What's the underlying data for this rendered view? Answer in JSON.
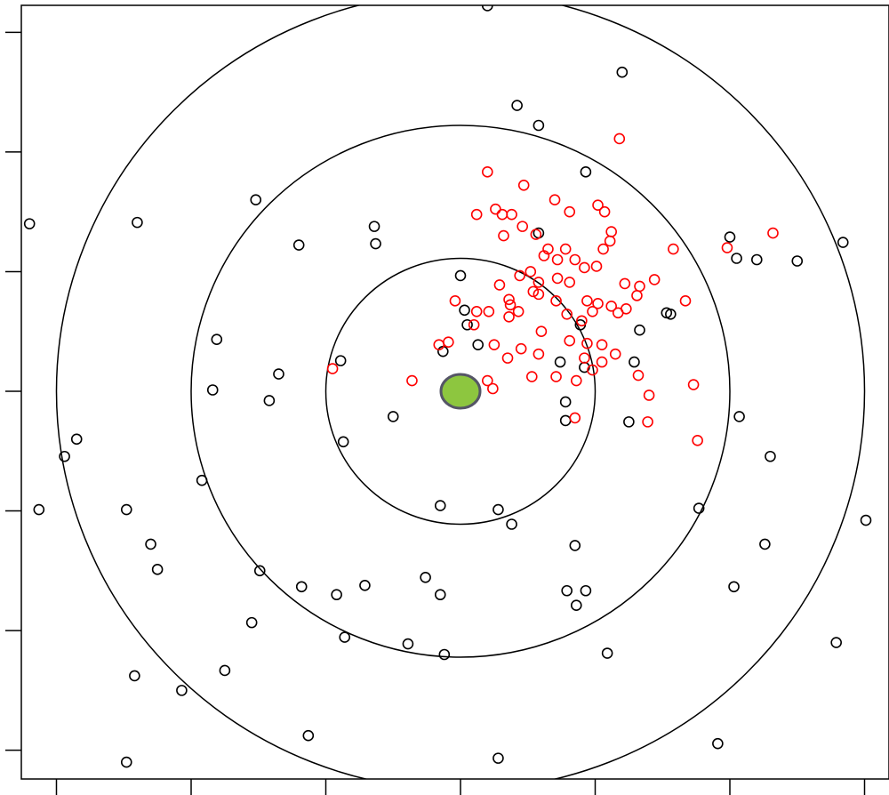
{
  "chart_data": {
    "type": "scatter",
    "title": "",
    "xlabel": "",
    "ylabel": "",
    "xlim": [
      -3.0,
      3.2
    ],
    "ylim": [
      -3.0,
      2.9
    ],
    "x_ticks": [
      -3,
      -2,
      -1,
      0,
      1,
      2,
      3
    ],
    "y_ticks": [
      -2.7,
      -1.8,
      -0.9,
      0,
      0.9,
      1.8,
      2.7
    ],
    "grid": false,
    "legend": "none",
    "target": {
      "center": [
        0,
        0
      ],
      "rings": [
        1,
        2,
        3
      ],
      "marker": {
        "x": 0,
        "y": 0,
        "fill": "#8dc63f",
        "stroke": "#555566"
      }
    },
    "series": [
      {
        "color": "#000000",
        "marker": "open-circle",
        "points": [
          [
            0.2,
            2.9
          ],
          [
            1.2,
            2.4
          ],
          [
            0.42,
            2.15
          ],
          [
            0.58,
            2.0
          ],
          [
            0.93,
            1.65
          ],
          [
            -1.52,
            1.44
          ],
          [
            -3.2,
            1.26
          ],
          [
            -2.4,
            1.27
          ],
          [
            -1.2,
            1.1
          ],
          [
            -0.64,
            1.24
          ],
          [
            -0.63,
            1.11
          ],
          [
            0.58,
            1.19
          ],
          [
            2.0,
            1.16
          ],
          [
            2.05,
            1.0
          ],
          [
            2.2,
            0.99
          ],
          [
            2.84,
            1.12
          ],
          [
            2.5,
            0.98
          ],
          [
            0,
            0.87
          ],
          [
            0.03,
            0.61
          ],
          [
            0.05,
            0.5
          ],
          [
            0.13,
            0.35
          ],
          [
            -0.13,
            0.3
          ],
          [
            0.89,
            0.5
          ],
          [
            1.33,
            0.46
          ],
          [
            1.53,
            0.59
          ],
          [
            1.56,
            0.58
          ],
          [
            -1.81,
            0.39
          ],
          [
            -0.89,
            0.23
          ],
          [
            -1.35,
            0.13
          ],
          [
            -1.84,
            0.01
          ],
          [
            -1.42,
            -0.07
          ],
          [
            0.74,
            0.22
          ],
          [
            0.92,
            0.18
          ],
          [
            1.29,
            0.22
          ],
          [
            -2.85,
            -0.36
          ],
          [
            -2.94,
            -0.49
          ],
          [
            -3.13,
            -0.89
          ],
          [
            -0.5,
            -0.19
          ],
          [
            0.78,
            -0.08
          ],
          [
            0.78,
            -0.22
          ],
          [
            1.25,
            -0.23
          ],
          [
            2.07,
            -0.19
          ],
          [
            2.3,
            -0.49
          ],
          [
            -0.87,
            -0.38
          ],
          [
            -1.92,
            -0.67
          ],
          [
            -2.48,
            -0.89
          ],
          [
            -2.3,
            -1.15
          ],
          [
            -2.25,
            -1.34
          ],
          [
            1.77,
            -0.88
          ],
          [
            -0.15,
            -0.86
          ],
          [
            0.28,
            -0.89
          ],
          [
            0.38,
            -1.0
          ],
          [
            2.26,
            -1.15
          ],
          [
            3.01,
            -0.97
          ],
          [
            0.85,
            -1.16
          ],
          [
            -1.49,
            -1.35
          ],
          [
            -1.18,
            -1.47
          ],
          [
            -0.92,
            -1.53
          ],
          [
            -0.71,
            -1.46
          ],
          [
            -0.26,
            -1.4
          ],
          [
            -0.15,
            -1.53
          ],
          [
            0.79,
            -1.5
          ],
          [
            0.86,
            -1.61
          ],
          [
            0.93,
            -1.5
          ],
          [
            2.03,
            -1.47
          ],
          [
            -1.55,
            -1.74
          ],
          [
            -0.86,
            -1.85
          ],
          [
            -0.39,
            -1.9
          ],
          [
            -0.12,
            -1.98
          ],
          [
            1.09,
            -1.97
          ],
          [
            2.79,
            -1.89
          ],
          [
            -2.42,
            -2.14
          ],
          [
            -1.75,
            -2.1
          ],
          [
            -2.07,
            -2.25
          ],
          [
            -1.13,
            -2.59
          ],
          [
            -2.48,
            -2.79
          ],
          [
            0.28,
            -2.76
          ],
          [
            1.91,
            -2.65
          ]
        ]
      },
      {
        "color": "#ff0000",
        "marker": "open-circle",
        "points": [
          [
            1.18,
            1.9
          ],
          [
            0.2,
            1.65
          ],
          [
            0.47,
            1.55
          ],
          [
            0.7,
            1.44
          ],
          [
            0.81,
            1.35
          ],
          [
            1.02,
            1.4
          ],
          [
            1.07,
            1.35
          ],
          [
            1.12,
            1.2
          ],
          [
            0.12,
            1.33
          ],
          [
            0.26,
            1.37
          ],
          [
            0.31,
            1.33
          ],
          [
            0.32,
            1.17
          ],
          [
            0.38,
            1.33
          ],
          [
            0.46,
            1.24
          ],
          [
            0.56,
            1.18
          ],
          [
            0.62,
            1.02
          ],
          [
            0.65,
            1.07
          ],
          [
            0.72,
            0.99
          ],
          [
            0.78,
            1.07
          ],
          [
            0.85,
            0.99
          ],
          [
            0.92,
            0.93
          ],
          [
            1.01,
            0.94
          ],
          [
            1.06,
            1.07
          ],
          [
            1.11,
            1.13
          ],
          [
            1.58,
            1.07
          ],
          [
            1.98,
            1.08
          ],
          [
            2.32,
            1.19
          ],
          [
            1.33,
            0.79
          ],
          [
            1.44,
            0.84
          ],
          [
            1.22,
            0.81
          ],
          [
            1.31,
            0.72
          ],
          [
            1.23,
            0.62
          ],
          [
            1.17,
            0.59
          ],
          [
            1.12,
            0.64
          ],
          [
            1.02,
            0.66
          ],
          [
            0.9,
            0.53
          ],
          [
            0.79,
            0.58
          ],
          [
            0.71,
            0.68
          ],
          [
            0.58,
            0.73
          ],
          [
            0.52,
            0.9
          ],
          [
            0.44,
            0.87
          ],
          [
            0.29,
            0.8
          ],
          [
            0.36,
            0.69
          ],
          [
            0.54,
            0.75
          ],
          [
            0.58,
            0.82
          ],
          [
            0.72,
            0.85
          ],
          [
            0.81,
            0.82
          ],
          [
            0.94,
            0.68
          ],
          [
            0.98,
            0.6
          ],
          [
            0.37,
            0.65
          ],
          [
            0.6,
            0.45
          ],
          [
            0.81,
            0.38
          ],
          [
            0.94,
            0.36
          ],
          [
            1.05,
            0.35
          ],
          [
            0.43,
            0.6
          ],
          [
            0.36,
            0.56
          ],
          [
            0.21,
            0.6
          ],
          [
            0.12,
            0.6
          ],
          [
            0.1,
            0.5
          ],
          [
            -0.09,
            0.37
          ],
          [
            -0.16,
            0.35
          ],
          [
            0.25,
            0.35
          ],
          [
            0.35,
            0.25
          ],
          [
            0.45,
            0.32
          ],
          [
            0.53,
            0.11
          ],
          [
            0.58,
            0.28
          ],
          [
            0.71,
            0.11
          ],
          [
            0.86,
            0.08
          ],
          [
            0.92,
            0.25
          ],
          [
            0.98,
            0.16
          ],
          [
            1.05,
            0.22
          ],
          [
            1.15,
            0.28
          ],
          [
            1.32,
            0.12
          ],
          [
            1.4,
            -0.03
          ],
          [
            1.39,
            -0.23
          ],
          [
            1.73,
            0.05
          ],
          [
            1.76,
            -0.37
          ],
          [
            0.2,
            0.08
          ],
          [
            0.24,
            0.02
          ],
          [
            -0.36,
            0.08
          ],
          [
            -0.04,
            0.68
          ],
          [
            -0.95,
            0.17
          ],
          [
            0.85,
            -0.2
          ],
          [
            1.67,
            0.68
          ]
        ]
      }
    ]
  }
}
